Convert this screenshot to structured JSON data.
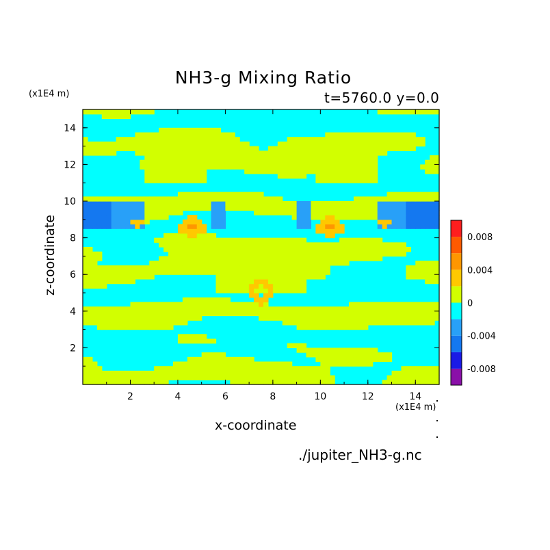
{
  "chart_data": {
    "type": "heatmap",
    "title": "NH3-g Mixing Ratio",
    "subtitle": "t=5760.0 y=0.0",
    "xlabel": "x-coordinate",
    "ylabel": "z-coordinate",
    "x_unit": "(x1E4 m)",
    "y_unit": "(x1E4 m)",
    "xlim": [
      0,
      15
    ],
    "ylim": [
      0,
      15
    ],
    "xticks": [
      2,
      4,
      6,
      8,
      10,
      12,
      14
    ],
    "yticks": [
      2,
      4,
      6,
      8,
      10,
      12,
      14
    ],
    "footer": "./jupiter_NH3-g.nc",
    "colorbar": {
      "levels": [
        -0.01,
        -0.008,
        -0.006,
        -0.004,
        -0.002,
        0,
        0.002,
        0.004,
        0.006,
        0.008,
        0.01
      ],
      "colors": [
        "#8a10a8",
        "#1a1ae6",
        "#1478f0",
        "#28a0f8",
        "#00ffff",
        "#d2ff00",
        "#ffc800",
        "#ff9600",
        "#ff5a00",
        "#ff1e1e",
        "#ffb4b4"
      ],
      "tick_labels": [
        "0.008",
        "0.004",
        "0",
        "-0.004",
        "-0.008"
      ],
      "tick_values": [
        0.008,
        0.004,
        0,
        -0.004,
        -0.008
      ]
    },
    "field_regions": [
      {
        "level": -0.003,
        "desc": "blue band",
        "z_range": [
          8.5,
          9.9
        ]
      },
      {
        "level": -0.001,
        "desc": "cyan background"
      },
      {
        "level": 0.001,
        "desc": "yellow-green bands"
      },
      {
        "level": 0.003,
        "desc": "orange patches",
        "z_range": [
          4.2,
          9.2
        ]
      },
      {
        "level": 0.005,
        "desc": "dark orange cores",
        "z_range": [
          8.5,
          9.0
        ]
      }
    ]
  }
}
